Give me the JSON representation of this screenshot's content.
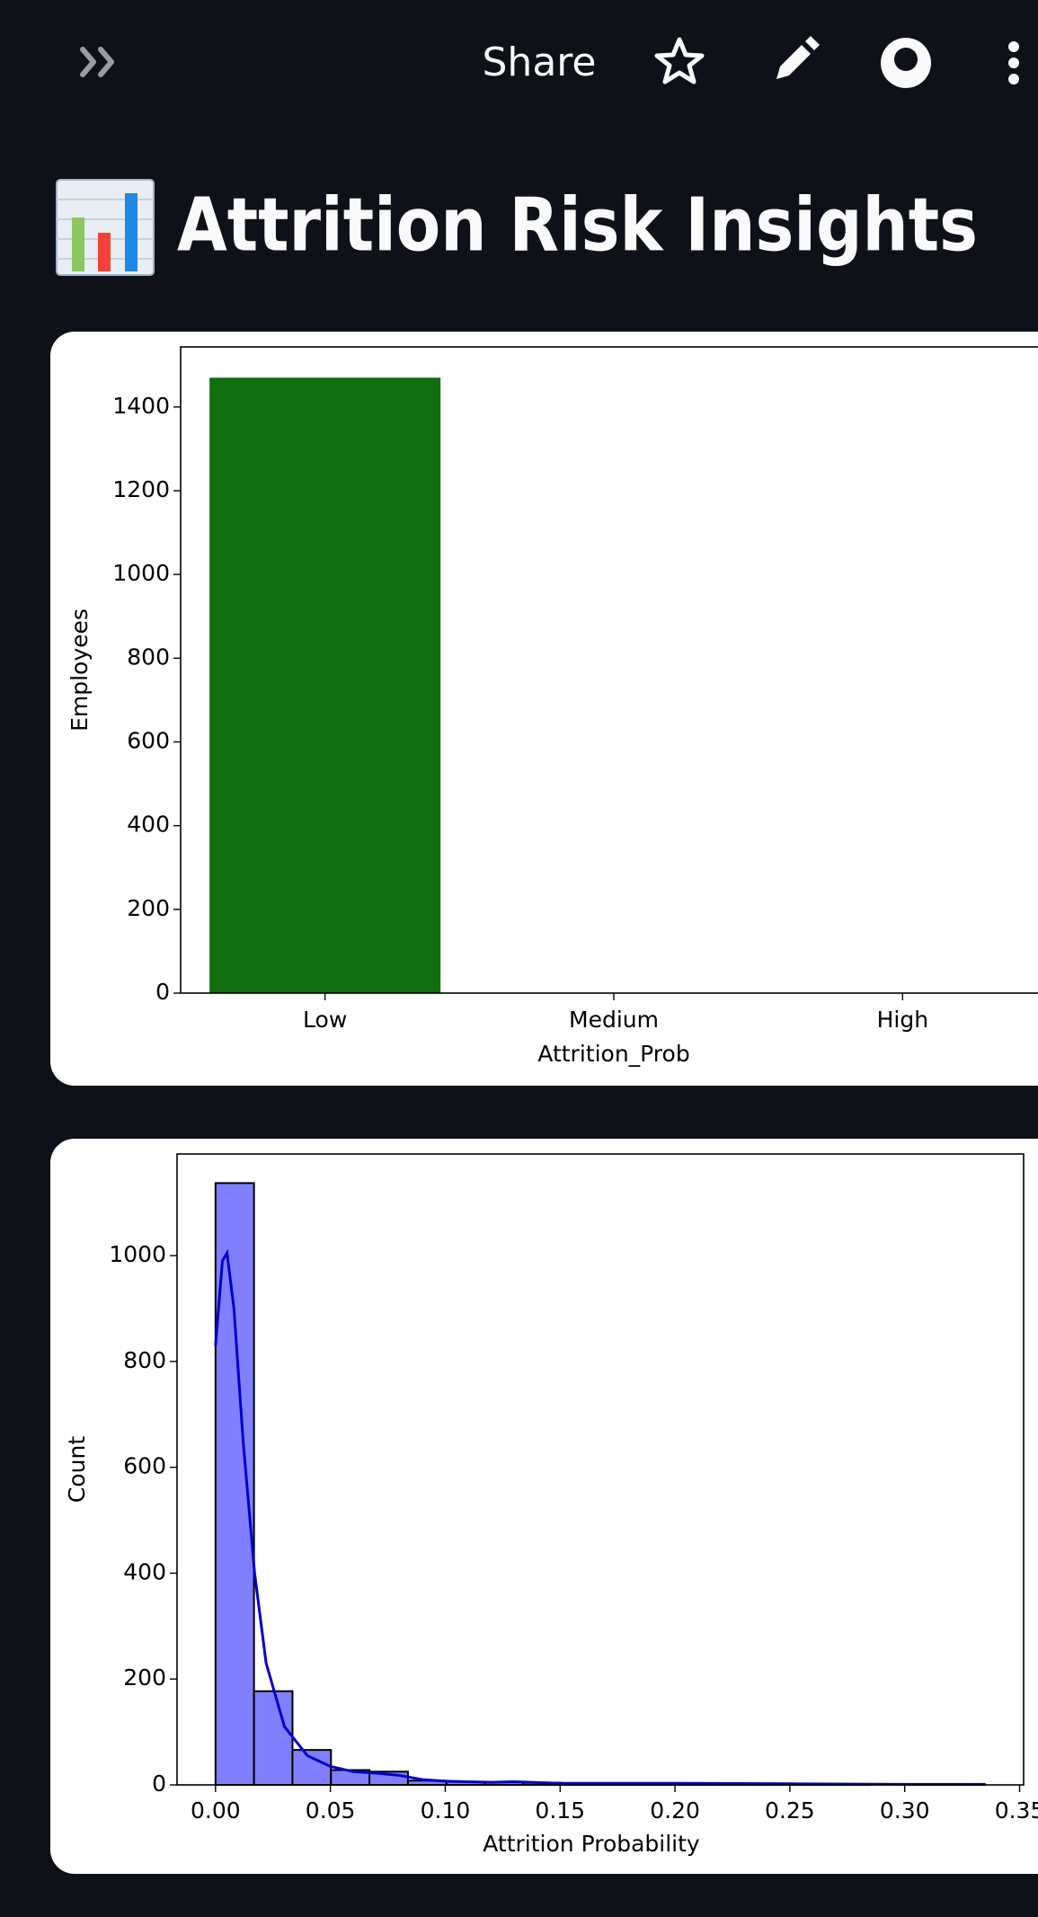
{
  "header": {
    "share": "Share"
  },
  "title": "Attrition Risk Insights",
  "chart_data": [
    {
      "type": "bar",
      "categories": [
        "Low",
        "Medium",
        "High"
      ],
      "values": [
        1470,
        0,
        0
      ],
      "color": "#126f10",
      "xlabel": "Attrition_Prob",
      "ylabel": "Employees",
      "ylim": [
        0,
        1543.5
      ],
      "yticks": [
        0,
        200,
        400,
        600,
        800,
        1000,
        1200,
        1400
      ]
    },
    {
      "type": "histogram",
      "xlabel": "Attrition Probability",
      "ylabel": "Count",
      "color": "#8080ff",
      "line_color": "#0000cc",
      "bins": [
        0,
        0.01675,
        0.0335,
        0.05025,
        0.067,
        0.08375,
        0.1005,
        0.11725,
        0.134,
        0.15075,
        0.1675,
        0.18425,
        0.201,
        0.21775,
        0.2345,
        0.25125,
        0.268,
        0.28475,
        0.3015,
        0.31825,
        0.335
      ],
      "values": [
        1137,
        177,
        66,
        28,
        25,
        8,
        6,
        5,
        4,
        3,
        2,
        2,
        1,
        1,
        1,
        1,
        1,
        0,
        1,
        1
      ],
      "kde": {
        "x": [
          0,
          0.003,
          0.005,
          0.008,
          0.012,
          0.017,
          0.022,
          0.03,
          0.04,
          0.05,
          0.06,
          0.07,
          0.08,
          0.09,
          0.1,
          0.12,
          0.13,
          0.15,
          0.2,
          0.25,
          0.3,
          0.335
        ],
        "y": [
          830,
          990,
          1005,
          900,
          650,
          400,
          230,
          110,
          55,
          35,
          25,
          22,
          18,
          10,
          7,
          5,
          6,
          3,
          3,
          2,
          1,
          1
        ]
      },
      "xlim": [
        -0.01675,
        0.35175
      ],
      "xticks": [
        {
          "value": 0,
          "label": "0.00"
        },
        {
          "value": 0.05,
          "label": "0.05"
        },
        {
          "value": 0.1,
          "label": "0.10"
        },
        {
          "value": 0.15,
          "label": "0.15"
        },
        {
          "value": 0.2,
          "label": "0.20"
        },
        {
          "value": 0.25,
          "label": "0.25"
        },
        {
          "value": 0.3,
          "label": "0.30"
        },
        {
          "value": 0.35,
          "label": "0.35"
        }
      ],
      "ylim": [
        0,
        1192
      ],
      "yticks": [
        0,
        200,
        400,
        600,
        800,
        1000
      ]
    }
  ]
}
